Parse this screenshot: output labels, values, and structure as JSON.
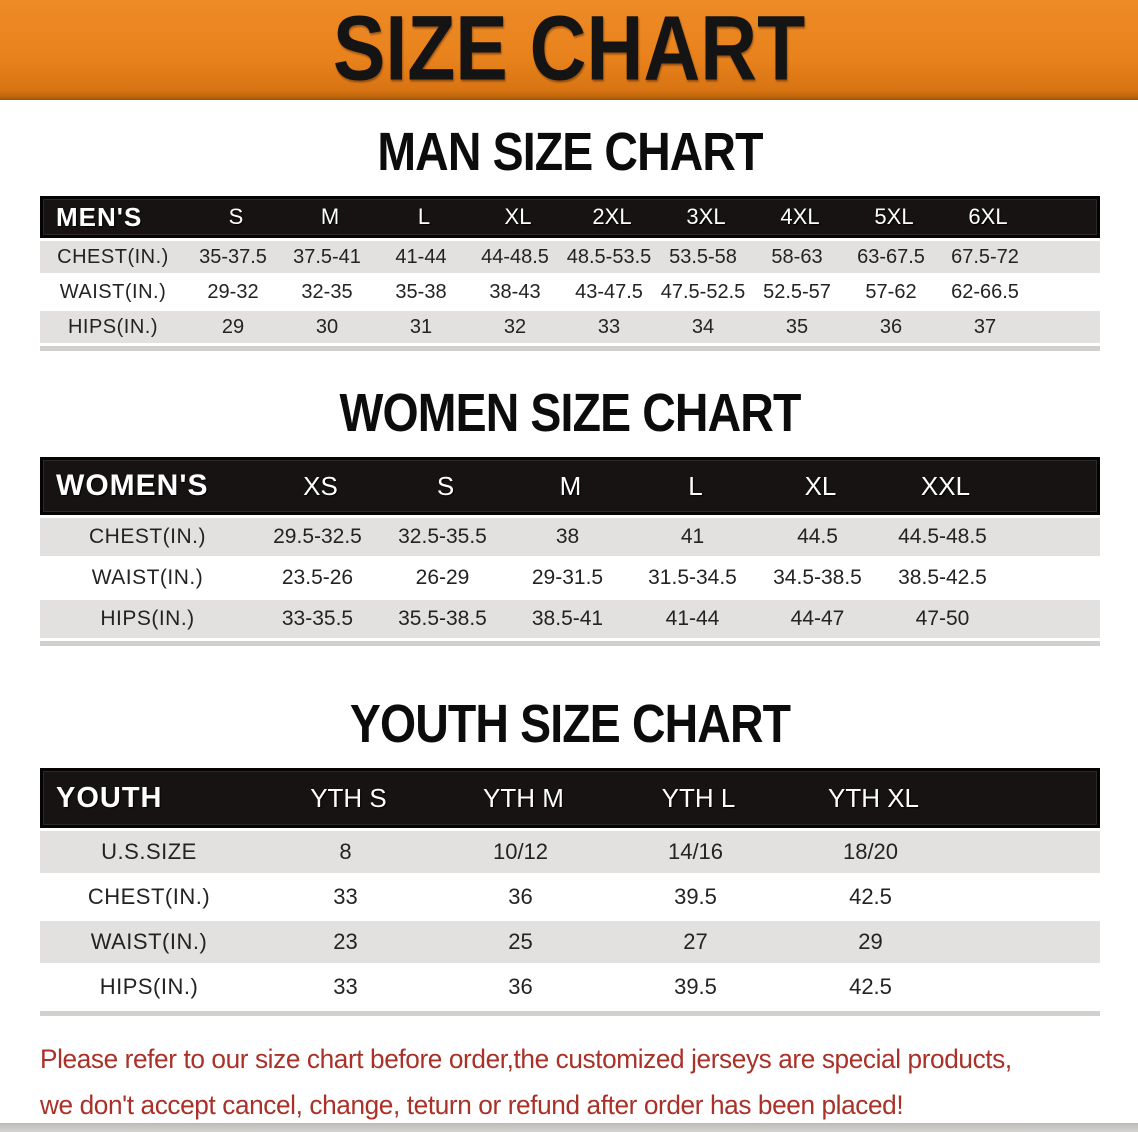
{
  "banner": {
    "title": "SIZE CHART",
    "bg_color": "#E8821C"
  },
  "sections": [
    {
      "title": "MAN SIZE CHART",
      "header_label": "MEN'S",
      "columns": [
        "S",
        "M",
        "L",
        "XL",
        "2XL",
        "3XL",
        "4XL",
        "5XL",
        "6XL"
      ],
      "rows": [
        {
          "label": "CHEST(IN.)",
          "values": [
            "35-37.5",
            "37.5-41",
            "41-44",
            "44-48.5",
            "48.5-53.5",
            "53.5-58",
            "58-63",
            "63-67.5",
            "67.5-72"
          ]
        },
        {
          "label": "WAIST(IN.)",
          "values": [
            "29-32",
            "32-35",
            "35-38",
            "38-43",
            "43-47.5",
            "47.5-52.5",
            "52.5-57",
            "57-62",
            "62-66.5"
          ]
        },
        {
          "label": "HIPS(IN.)",
          "values": [
            "29",
            "30",
            "31",
            "32",
            "33",
            "34",
            "35",
            "36",
            "37"
          ]
        }
      ]
    },
    {
      "title": "WOMEN SIZE CHART",
      "header_label": "WOMEN'S",
      "columns": [
        "XS",
        "S",
        "M",
        "L",
        "XL",
        "XXL"
      ],
      "rows": [
        {
          "label": "CHEST(IN.)",
          "values": [
            "29.5-32.5",
            "32.5-35.5",
            "38",
            "41",
            "44.5",
            "44.5-48.5"
          ]
        },
        {
          "label": "WAIST(IN.)",
          "values": [
            "23.5-26",
            "26-29",
            "29-31.5",
            "31.5-34.5",
            "34.5-38.5",
            "38.5-42.5"
          ]
        },
        {
          "label": "HIPS(IN.)",
          "values": [
            "33-35.5",
            "35.5-38.5",
            "38.5-41",
            "41-44",
            "44-47",
            "47-50"
          ]
        }
      ]
    },
    {
      "title": "YOUTH SIZE CHART",
      "header_label": "YOUTH",
      "columns": [
        "YTH S",
        "YTH M",
        "YTH L",
        "YTH XL"
      ],
      "rows": [
        {
          "label": "U.S.SIZE",
          "values": [
            "8",
            "10/12",
            "14/16",
            "18/20"
          ]
        },
        {
          "label": "CHEST(IN.)",
          "values": [
            "33",
            "36",
            "39.5",
            "42.5"
          ]
        },
        {
          "label": "WAIST(IN.)",
          "values": [
            "23",
            "25",
            "27",
            "29"
          ]
        },
        {
          "label": "HIPS(IN.)",
          "values": [
            "33",
            "36",
            "39.5",
            "42.5"
          ]
        }
      ]
    }
  ],
  "footer": {
    "line1": "Please refer to our size chart before order,the customized jerseys are special products,",
    "line2": "we don't accept cancel, change, teturn or refund after order has been placed!",
    "text_color": "#A93128"
  },
  "colors": {
    "banner_orange": "#E8821C",
    "table_header_bg": "#171312",
    "stripe_gray": "#E2E1DF",
    "footer_red": "#A93128"
  }
}
